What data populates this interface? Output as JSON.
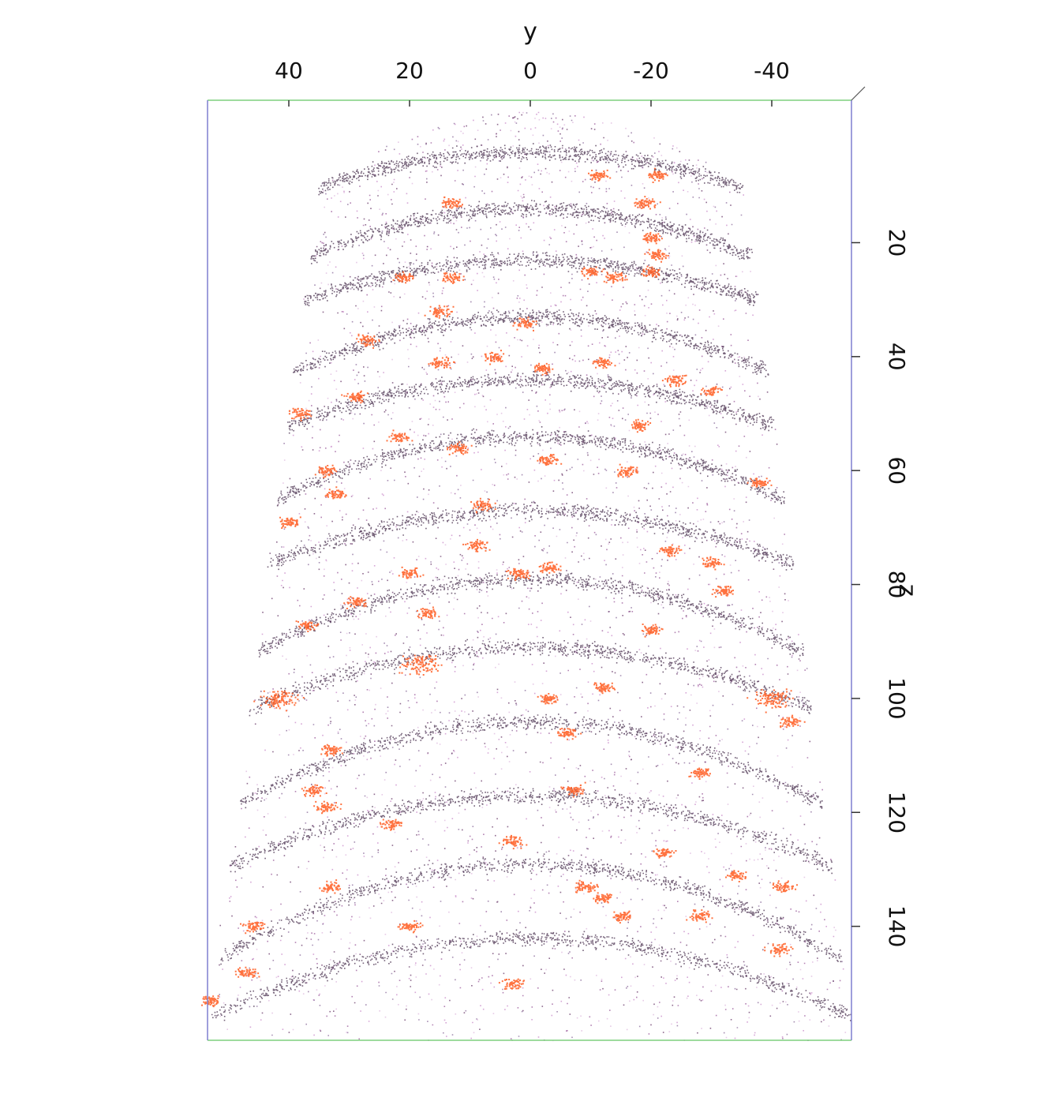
{
  "chart_data": {
    "type": "scatter",
    "title": "",
    "xlabel": "y",
    "ylabel": "z",
    "x_axis": {
      "label": "y",
      "position": "top",
      "direction": "decreasing-left-to-right",
      "range": [
        53,
        -53
      ],
      "ticks": [
        40,
        20,
        0,
        -20,
        -40
      ],
      "tick_labels": [
        "40",
        "20",
        "0",
        "-20",
        "-40"
      ]
    },
    "z_axis": {
      "label": "z",
      "position": "right",
      "direction": "increasing-top-to-bottom",
      "range": [
        -5,
        160
      ],
      "ticks": [
        20,
        40,
        60,
        80,
        100,
        120,
        140
      ],
      "tick_labels": [
        "20",
        "40",
        "60",
        "80",
        "100",
        "120",
        "140"
      ]
    },
    "grid": false,
    "legend": "none",
    "series": [
      {
        "role": "background atoms",
        "color": "#9a5a9a"
      },
      {
        "role": "dense layers",
        "color": "#3a2040"
      },
      {
        "role": "clusters",
        "color": "#ff5a1f"
      }
    ],
    "clusters": [
      {
        "y": 13,
        "z": 13
      },
      {
        "y": -11,
        "z": 8
      },
      {
        "y": -21,
        "z": 8
      },
      {
        "y": -19,
        "z": 13
      },
      {
        "y": -20,
        "z": 19
      },
      {
        "y": -21,
        "z": 22
      },
      {
        "y": 21,
        "z": 26
      },
      {
        "y": 13,
        "z": 26
      },
      {
        "y": -10,
        "z": 25
      },
      {
        "y": -14,
        "z": 26
      },
      {
        "y": -20,
        "z": 25
      },
      {
        "y": 15,
        "z": 32
      },
      {
        "y": 1,
        "z": 34
      },
      {
        "y": 27,
        "z": 37
      },
      {
        "y": 15,
        "z": 41
      },
      {
        "y": 6,
        "z": 40
      },
      {
        "y": -2,
        "z": 42
      },
      {
        "y": -12,
        "z": 41
      },
      {
        "y": -24,
        "z": 44
      },
      {
        "y": -30,
        "z": 46
      },
      {
        "y": 29,
        "z": 47
      },
      {
        "y": 38,
        "z": 50
      },
      {
        "y": -18,
        "z": 52
      },
      {
        "y": 22,
        "z": 54
      },
      {
        "y": 12,
        "z": 56
      },
      {
        "y": -3,
        "z": 58
      },
      {
        "y": -16,
        "z": 60
      },
      {
        "y": 34,
        "z": 60
      },
      {
        "y": 32,
        "z": 64
      },
      {
        "y": 8,
        "z": 66
      },
      {
        "y": 40,
        "z": 69
      },
      {
        "y": -38,
        "z": 62
      },
      {
        "y": -23,
        "z": 74
      },
      {
        "y": 9,
        "z": 73
      },
      {
        "y": -30,
        "z": 76
      },
      {
        "y": -3,
        "z": 77
      },
      {
        "y": 2,
        "z": 78
      },
      {
        "y": 20,
        "z": 78
      },
      {
        "y": -32,
        "z": 81
      },
      {
        "y": 29,
        "z": 83
      },
      {
        "y": 17,
        "z": 85
      },
      {
        "y": -20,
        "z": 88
      },
      {
        "y": 37,
        "z": 87
      },
      {
        "y": 18,
        "z": 94
      },
      {
        "y": 42,
        "z": 100
      },
      {
        "y": -40,
        "z": 100
      },
      {
        "y": -43,
        "z": 104
      },
      {
        "y": -3,
        "z": 100
      },
      {
        "y": -12,
        "z": 98
      },
      {
        "y": -6,
        "z": 106
      },
      {
        "y": 33,
        "z": 109
      },
      {
        "y": -28,
        "z": 113
      },
      {
        "y": -7,
        "z": 116
      },
      {
        "y": 36,
        "z": 116
      },
      {
        "y": 34,
        "z": 119
      },
      {
        "y": 23,
        "z": 122
      },
      {
        "y": 3,
        "z": 125
      },
      {
        "y": -22,
        "z": 127
      },
      {
        "y": -34,
        "z": 131
      },
      {
        "y": -9,
        "z": 133
      },
      {
        "y": -12,
        "z": 135
      },
      {
        "y": 33,
        "z": 133
      },
      {
        "y": -42,
        "z": 133
      },
      {
        "y": 20,
        "z": 140
      },
      {
        "y": -15,
        "z": 138
      },
      {
        "y": -28,
        "z": 138
      },
      {
        "y": 46,
        "z": 140
      },
      {
        "y": 3,
        "z": 150
      },
      {
        "y": 47,
        "z": 148
      },
      {
        "y": 53,
        "z": 153
      },
      {
        "y": -41,
        "z": 144
      }
    ]
  }
}
